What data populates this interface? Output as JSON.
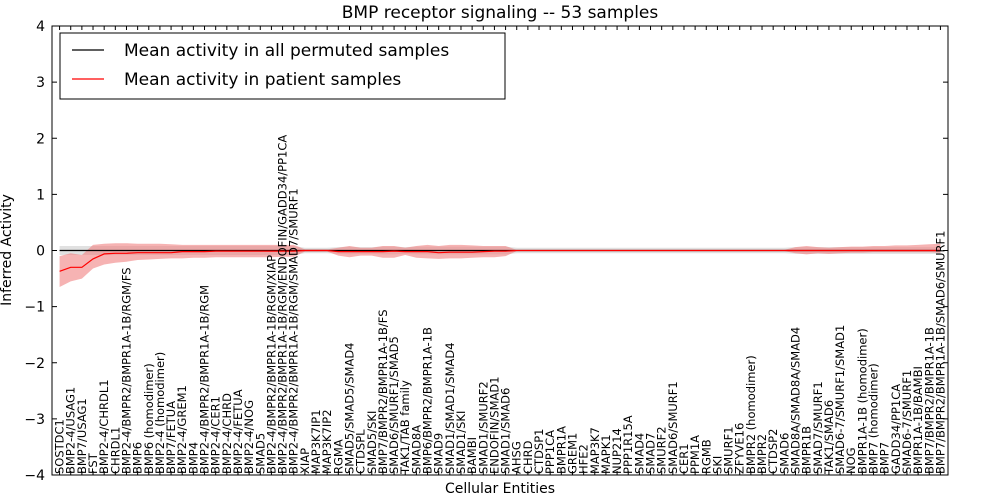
{
  "chart_data": {
    "type": "line",
    "title": "BMP receptor signaling -- 53 samples",
    "xlabel": "Cellular Entities",
    "ylabel": "Inferred Activity",
    "ylim": [
      -4,
      4
    ],
    "yticks": [
      "−4",
      "−3",
      "−2",
      "−1",
      "0",
      "1",
      "2",
      "3",
      "4"
    ],
    "grid": false,
    "legend_position": "top-left",
    "categories": [
      "SOSTDC1",
      "BMP2-4/USAG1",
      "BMP7/USAG1",
      "FST",
      "BMP2-4/CHRDL1",
      "CHRDL1",
      "BMP2-4/BMPR2/BMPR1A-1B/RGM/FS",
      "BMP6",
      "BMP6 (homodimer)",
      "BMP2-4 (homodimer)",
      "BMP7/FETUA",
      "BMP2-4/GREM1",
      "BMP4",
      "BMP2-4/BMPR2/BMPR1A-1B/RGM",
      "BMP2-4/CER1",
      "BMP2-4/CHRD",
      "BMP2-4/FETUA",
      "BMP2-4/NOG",
      "SMAD5",
      "BMP2-4/BMPR2/BMPR1A-1B/RGM/XIAP",
      "BMP2-4/BMPR2/BMPR1A-1B/RGM/ENDOFIN/GADD34/PP1CA",
      "BMP2-4/BMPR2/BMPR1A-1B/RGM/SMAD7/SMURF1",
      "XIAP",
      "MAP3K7IP1",
      "MAP3K7IP2",
      "RGMA",
      "SMAD5/SMAD5/SMAD4",
      "CTDSPL",
      "SMAD5/SKI",
      "BMP7/BMPR2/BMPR1A-1B/FS",
      "SMAD6/SMURF1/SMAD5",
      "TAK1/TAB family",
      "SMAD8A",
      "BMP6/BMPR2/BMPR1A-1B",
      "SMAD9",
      "SMAD1/SMAD1/SMAD4",
      "SMAD1/SKI",
      "BAMBI",
      "SMAD1/SMURF2",
      "ENDOFIN/SMAD1",
      "SMAD1/SMAD6",
      "AHSG",
      "CHRD",
      "CTDSP1",
      "PPP1CA",
      "BMPR1A",
      "GREM1",
      "HFE2",
      "MAP3K7",
      "MAPK1",
      "NUP214",
      "PPP1R15A",
      "SMAD4",
      "SMAD7",
      "SMURF2",
      "SMAD6/SMURF1",
      "CER1",
      "PPM1A",
      "RGMB",
      "SKI",
      "SMURF1",
      "ZFYVE16",
      "BMPR2 (homodimer)",
      "BMPR2",
      "CTDSP2",
      "SMAD6",
      "SMAD8A/SMAD8A/SMAD4",
      "BMPR1B",
      "SMAD7/SMURF1",
      "TAK1/SMAD6",
      "SMAD6-7/SMURF1/SMAD1",
      "NOG",
      "BMPR1A-1B (homodimer)",
      "BMP7 (homodimer)",
      "BMP7",
      "GADD34/PP1CA",
      "SMAD6-7/SMURF1",
      "BMPR1A-1B/BAMBI",
      "BMP7/BMPR2/BMPR1A-1B",
      "BMP7/BMPR2/BMPR1A-1B/SMAD6/SMURF1"
    ],
    "series": [
      {
        "name": "Mean activity in all permuted samples",
        "color": "#000000",
        "band_color": "#c8c8c8",
        "values": [
          0.0,
          0.0,
          0.0,
          0.0,
          0.0,
          0.0,
          0.0,
          0.0,
          0.0,
          0.0,
          0.0,
          0.0,
          0.0,
          0.0,
          0.0,
          0.0,
          0.0,
          0.0,
          0.0,
          0.0,
          0.0,
          0.0,
          0.0,
          0.0,
          0.0,
          0.0,
          0.0,
          0.0,
          0.0,
          0.0,
          0.0,
          0.0,
          0.0,
          0.0,
          0.0,
          0.0,
          0.0,
          0.0,
          0.0,
          0.0,
          0.0,
          0.0,
          0.0,
          0.0,
          0.0,
          0.0,
          0.0,
          0.0,
          0.0,
          0.0,
          0.0,
          0.0,
          0.0,
          0.0,
          0.0,
          0.0,
          0.0,
          0.0,
          0.0,
          0.0,
          0.0,
          0.0,
          0.0,
          0.0,
          0.0,
          0.0,
          0.0,
          0.0,
          0.0,
          0.0,
          0.0,
          0.0,
          0.0,
          0.0,
          0.0,
          0.0,
          0.0,
          0.0,
          0.0,
          0.0
        ],
        "lower": [
          -0.08,
          -0.08,
          -0.08,
          -0.08,
          -0.08,
          -0.08,
          -0.08,
          -0.08,
          -0.08,
          -0.08,
          -0.08,
          -0.08,
          -0.08,
          -0.08,
          -0.08,
          -0.08,
          -0.08,
          -0.08,
          -0.08,
          -0.08,
          -0.08,
          -0.08,
          -0.05,
          -0.05,
          -0.05,
          -0.06,
          -0.07,
          -0.06,
          -0.06,
          -0.07,
          -0.07,
          -0.06,
          -0.07,
          -0.07,
          -0.07,
          -0.07,
          -0.07,
          -0.07,
          -0.07,
          -0.07,
          -0.07,
          -0.05,
          -0.05,
          -0.05,
          -0.05,
          -0.05,
          -0.05,
          -0.05,
          -0.05,
          -0.05,
          -0.05,
          -0.05,
          -0.05,
          -0.05,
          -0.05,
          -0.05,
          -0.05,
          -0.05,
          -0.05,
          -0.05,
          -0.05,
          -0.05,
          -0.05,
          -0.05,
          -0.05,
          -0.05,
          -0.06,
          -0.06,
          -0.06,
          -0.06,
          -0.06,
          -0.06,
          -0.06,
          -0.06,
          -0.06,
          -0.06,
          -0.06,
          -0.06,
          -0.06,
          -0.06
        ],
        "upper": [
          0.08,
          0.08,
          0.08,
          0.08,
          0.08,
          0.08,
          0.08,
          0.08,
          0.08,
          0.08,
          0.08,
          0.08,
          0.08,
          0.08,
          0.08,
          0.08,
          0.08,
          0.08,
          0.08,
          0.08,
          0.08,
          0.08,
          0.05,
          0.05,
          0.05,
          0.06,
          0.07,
          0.06,
          0.06,
          0.07,
          0.07,
          0.06,
          0.07,
          0.07,
          0.07,
          0.07,
          0.07,
          0.07,
          0.07,
          0.07,
          0.07,
          0.05,
          0.05,
          0.05,
          0.05,
          0.05,
          0.05,
          0.05,
          0.05,
          0.05,
          0.05,
          0.05,
          0.05,
          0.05,
          0.05,
          0.05,
          0.05,
          0.05,
          0.05,
          0.05,
          0.05,
          0.05,
          0.05,
          0.05,
          0.05,
          0.05,
          0.06,
          0.06,
          0.06,
          0.06,
          0.06,
          0.06,
          0.06,
          0.06,
          0.06,
          0.06,
          0.06,
          0.06,
          0.06,
          0.06
        ]
      },
      {
        "name": "Mean activity in patient samples",
        "color": "#ff0000",
        "band_color": "#f08080",
        "values": [
          -0.37,
          -0.3,
          -0.3,
          -0.15,
          -0.06,
          -0.05,
          -0.05,
          -0.04,
          -0.04,
          -0.04,
          -0.04,
          -0.02,
          -0.02,
          -0.02,
          -0.01,
          -0.01,
          -0.01,
          -0.01,
          -0.01,
          -0.01,
          -0.01,
          -0.01,
          0.0,
          0.0,
          0.0,
          -0.02,
          -0.02,
          -0.02,
          -0.02,
          -0.02,
          -0.01,
          -0.02,
          -0.02,
          -0.02,
          -0.04,
          -0.03,
          -0.03,
          -0.03,
          -0.02,
          -0.01,
          -0.01,
          0.0,
          0.0,
          0.0,
          0.0,
          0.0,
          0.0,
          0.0,
          0.0,
          0.0,
          0.0,
          0.0,
          0.0,
          0.0,
          0.0,
          0.0,
          0.0,
          0.0,
          0.0,
          0.0,
          0.0,
          0.0,
          0.0,
          0.0,
          0.0,
          0.0,
          0.0,
          0.0,
          0.0,
          0.0,
          0.0,
          0.0,
          0.0,
          0.0,
          0.0,
          0.0,
          0.0,
          0.0,
          0.0,
          0.0
        ],
        "lower": [
          -0.65,
          -0.55,
          -0.5,
          -0.32,
          -0.25,
          -0.22,
          -0.2,
          -0.17,
          -0.16,
          -0.15,
          -0.14,
          -0.14,
          -0.13,
          -0.13,
          -0.12,
          -0.12,
          -0.12,
          -0.12,
          -0.12,
          -0.12,
          -0.11,
          -0.11,
          -0.02,
          -0.02,
          -0.02,
          -0.09,
          -0.12,
          -0.09,
          -0.09,
          -0.13,
          -0.13,
          -0.08,
          -0.13,
          -0.14,
          -0.15,
          -0.14,
          -0.14,
          -0.13,
          -0.12,
          -0.12,
          -0.1,
          -0.01,
          -0.01,
          -0.01,
          -0.01,
          -0.01,
          -0.01,
          -0.01,
          -0.01,
          -0.01,
          -0.01,
          -0.01,
          -0.01,
          -0.01,
          -0.01,
          -0.01,
          -0.01,
          -0.01,
          -0.01,
          -0.01,
          -0.01,
          -0.01,
          -0.01,
          -0.01,
          -0.01,
          -0.01,
          -0.05,
          -0.07,
          -0.05,
          -0.06,
          -0.05,
          -0.04,
          -0.04,
          -0.03,
          -0.03,
          -0.03,
          -0.03,
          -0.03,
          -0.03,
          -0.04
        ],
        "upper": [
          -0.1,
          -0.05,
          -0.08,
          0.1,
          0.12,
          0.13,
          0.13,
          0.12,
          0.12,
          0.12,
          0.11,
          0.1,
          0.1,
          0.1,
          0.1,
          0.1,
          0.1,
          0.1,
          0.1,
          0.1,
          0.1,
          0.1,
          0.02,
          0.02,
          0.02,
          0.05,
          0.08,
          0.05,
          0.05,
          0.08,
          0.08,
          0.05,
          0.08,
          0.1,
          0.08,
          0.1,
          0.1,
          0.09,
          0.08,
          0.08,
          0.08,
          0.01,
          0.01,
          0.01,
          0.01,
          0.01,
          0.01,
          0.01,
          0.01,
          0.01,
          0.01,
          0.01,
          0.01,
          0.01,
          0.01,
          0.01,
          0.01,
          0.01,
          0.01,
          0.01,
          0.01,
          0.01,
          0.01,
          0.01,
          0.01,
          0.01,
          0.06,
          0.08,
          0.06,
          0.05,
          0.06,
          0.07,
          0.07,
          0.08,
          0.08,
          0.09,
          0.09,
          0.1,
          0.11,
          0.12
        ]
      }
    ]
  }
}
